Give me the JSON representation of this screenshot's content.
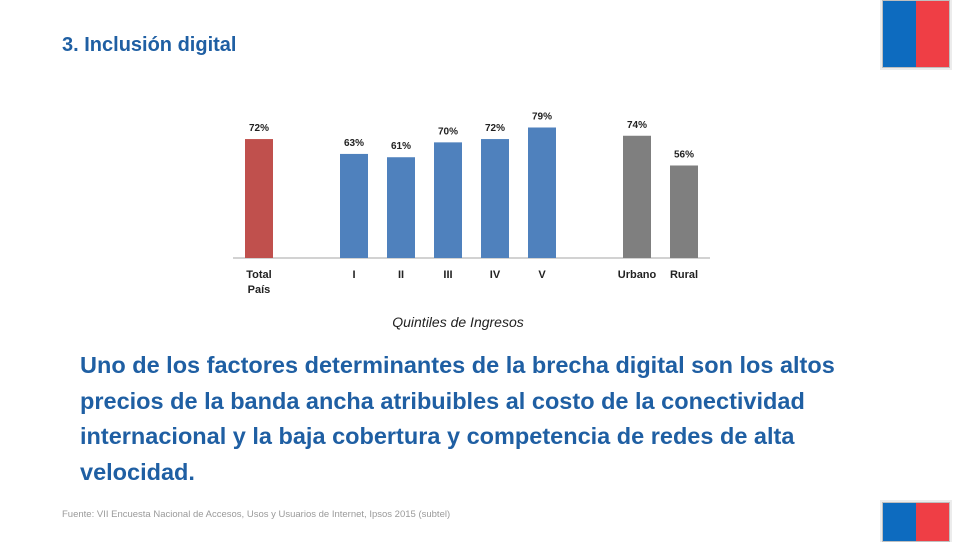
{
  "slide": {
    "title": "3. Inclusión digital",
    "body": "Uno de los factores determinantes de la brecha digital son los altos precios de la banda ancha atribuibles al costo de la conectividad internacional y la baja cobertura y competencia de redes de alta velocidad.",
    "source": "Fuente: VII Encuesta Nacional de Accesos, Usos y Usuarios de Internet, Ipsos 2015 (subtel)"
  },
  "colors": {
    "title": "#1f5fa3",
    "flag_blue": "#0d6bbf",
    "flag_red": "#ef3e45"
  },
  "chart_data": {
    "type": "bar",
    "title": "",
    "xlabel": "Quintiles de Ingresos",
    "ylabel": "",
    "ylim": [
      0,
      90
    ],
    "grid": false,
    "categories": [
      [
        "Total",
        "País"
      ],
      [
        "I"
      ],
      [
        "II"
      ],
      [
        "III"
      ],
      [
        "IV"
      ],
      [
        "V"
      ],
      [
        "Urbano"
      ],
      [
        "Rural"
      ]
    ],
    "values": [
      72,
      63,
      61,
      70,
      72,
      79,
      74,
      56
    ],
    "labels": [
      "72%",
      "63%",
      "61%",
      "70%",
      "72%",
      "79%",
      "74%",
      "56%"
    ],
    "colors": [
      "#c0504d",
      "#4f81bd",
      "#4f81bd",
      "#4f81bd",
      "#4f81bd",
      "#4f81bd",
      "#7f7f7f",
      "#7f7f7f"
    ]
  }
}
